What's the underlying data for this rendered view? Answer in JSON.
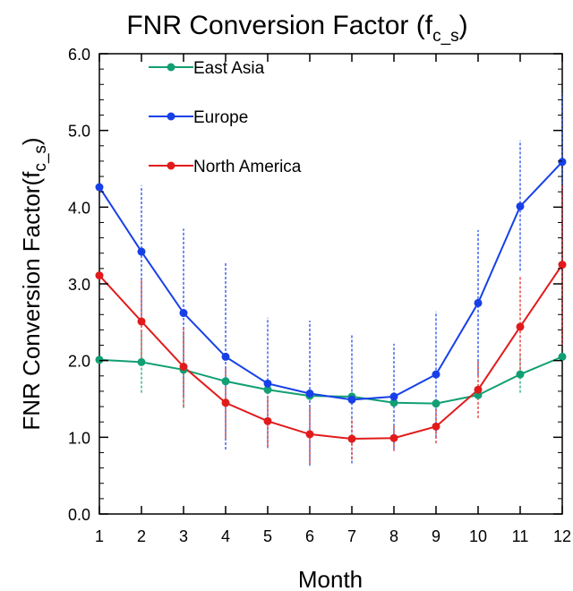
{
  "chart_data": {
    "type": "line",
    "title": "FNR Conversion Factor (f",
    "title_subscript": "c_s",
    "title_suffix": ")",
    "xlabel": "Month",
    "ylabel": "FNR Conversion Factor(f",
    "ylabel_subscript": "c_s",
    "ylabel_suffix": ")",
    "x": [
      1,
      2,
      3,
      4,
      5,
      6,
      7,
      8,
      9,
      10,
      11,
      12
    ],
    "x_tick_labels": [
      "1",
      "2",
      "3",
      "4",
      "5",
      "6",
      "7",
      "8",
      "9",
      "10",
      "11",
      "12"
    ],
    "xlim": [
      1,
      12
    ],
    "ylim": [
      0,
      6
    ],
    "y_tick_values": [
      0,
      1,
      2,
      3,
      4,
      5,
      6
    ],
    "y_tick_labels": [
      "0.0",
      "1.0",
      "2.0",
      "3.0",
      "4.0",
      "5.0",
      "6.0"
    ],
    "grid": false,
    "legend_position": "top-left",
    "series": [
      {
        "name": "East Asia",
        "color": "#119f73",
        "values": [
          2.01,
          1.98,
          1.88,
          1.73,
          1.62,
          1.54,
          1.53,
          1.45,
          1.44,
          1.55,
          1.82,
          2.05
        ],
        "error_low": [
          2.01,
          1.58,
          1.38,
          1.73,
          1.62,
          1.54,
          1.53,
          1.45,
          1.44,
          1.55,
          1.58,
          2.05
        ],
        "error_high": [
          2.01,
          2.38,
          2.38,
          1.73,
          1.62,
          1.54,
          1.53,
          1.45,
          1.44,
          1.55,
          2.06,
          2.05
        ]
      },
      {
        "name": "Europe",
        "color": "#1740e8",
        "values": [
          4.26,
          3.42,
          2.62,
          2.05,
          1.7,
          1.57,
          1.49,
          1.53,
          1.82,
          2.75,
          4.01,
          4.59
        ],
        "error_low": [
          4.26,
          2.58,
          1.53,
          0.84,
          0.86,
          0.63,
          0.66,
          0.85,
          1.0,
          1.81,
          3.17,
          3.6
        ],
        "error_high": [
          4.26,
          4.28,
          3.72,
          3.27,
          2.56,
          2.52,
          2.33,
          2.22,
          2.64,
          3.7,
          4.87,
          5.48
        ]
      },
      {
        "name": "North America",
        "color": "#e11b1b",
        "values": [
          3.11,
          2.51,
          1.92,
          1.45,
          1.21,
          1.04,
          0.98,
          0.99,
          1.14,
          1.62,
          2.44,
          3.25
        ],
        "error_low": [
          3.11,
          1.96,
          1.4,
          0.98,
          0.88,
          0.66,
          0.71,
          0.82,
          0.92,
          1.25,
          1.77,
          2.2
        ],
        "error_high": [
          3.11,
          3.06,
          2.44,
          1.92,
          1.54,
          1.42,
          1.25,
          1.16,
          1.36,
          1.99,
          3.11,
          4.3
        ]
      }
    ]
  }
}
